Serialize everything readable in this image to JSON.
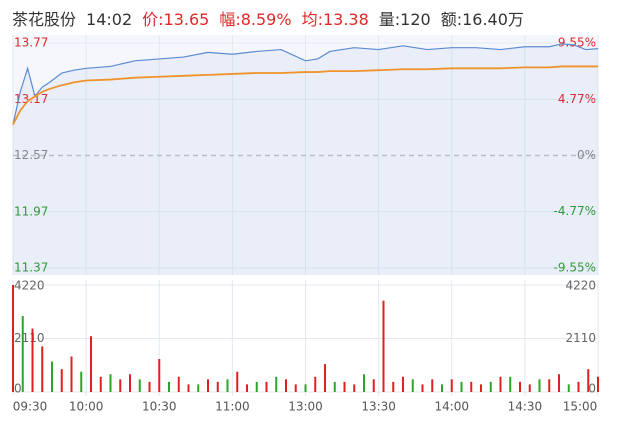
{
  "header": {
    "name": "茶花股份",
    "time": "14:02",
    "price": "价:13.65",
    "change": "幅:8.59%",
    "avg": "均:13.38",
    "volume": "量:120",
    "amount": "额:16.40万"
  },
  "chart_data": [
    {
      "type": "line",
      "xlim": [
        0,
        240
      ],
      "x": [
        0,
        3,
        6,
        9,
        12,
        15,
        20,
        25,
        30,
        40,
        50,
        60,
        70,
        80,
        90,
        100,
        110,
        120,
        125,
        130,
        140,
        150,
        160,
        170,
        180,
        190,
        200,
        210,
        220,
        225,
        230,
        235,
        240
      ],
      "series": [
        {
          "color": "#5b8bd0",
          "values": [
            12.9,
            13.25,
            13.5,
            13.2,
            13.3,
            13.35,
            13.45,
            13.48,
            13.5,
            13.52,
            13.58,
            13.6,
            13.62,
            13.67,
            13.65,
            13.68,
            13.7,
            13.58,
            13.6,
            13.68,
            13.72,
            13.7,
            13.74,
            13.7,
            13.72,
            13.72,
            13.7,
            13.73,
            13.73,
            13.76,
            13.75,
            13.7,
            13.71
          ]
        },
        {
          "color": "#f0932b",
          "values": [
            12.9,
            13.05,
            13.15,
            13.2,
            13.25,
            13.28,
            13.32,
            13.35,
            13.37,
            13.38,
            13.4,
            13.41,
            13.42,
            13.43,
            13.44,
            13.45,
            13.45,
            13.46,
            13.46,
            13.47,
            13.47,
            13.48,
            13.49,
            13.49,
            13.5,
            13.5,
            13.5,
            13.51,
            13.51,
            13.52,
            13.52,
            13.52,
            13.52
          ]
        }
      ],
      "ylim": [
        11.37,
        13.77
      ],
      "yticks": [
        13.77,
        13.17,
        12.57,
        11.97,
        11.37
      ],
      "y2lim": [
        -9.55,
        9.55
      ],
      "y2ticks": [
        {
          "value": 9.55,
          "label": "9.55%"
        },
        {
          "value": 4.77,
          "label": "4.77%"
        },
        {
          "value": 0,
          "label": "0%"
        },
        {
          "value": -4.77,
          "label": "-4.77%"
        },
        {
          "value": -9.55,
          "label": "-9.55%"
        }
      ]
    },
    {
      "type": "bar",
      "xlim": [
        0,
        240
      ],
      "x": [
        0,
        4,
        8,
        12,
        16,
        20,
        24,
        28,
        32,
        36,
        40,
        44,
        48,
        52,
        56,
        60,
        64,
        68,
        72,
        76,
        80,
        84,
        88,
        92,
        96,
        100,
        104,
        108,
        112,
        116,
        120,
        124,
        128,
        132,
        136,
        140,
        144,
        148,
        152,
        156,
        160,
        164,
        168,
        172,
        176,
        180,
        184,
        188,
        192,
        196,
        200,
        204,
        208,
        212,
        216,
        220,
        224,
        228,
        232,
        236,
        240
      ],
      "series": [
        {
          "color": "#e02020",
          "values": [
            4220,
            null,
            2500,
            1800,
            null,
            900,
            1400,
            null,
            2200,
            600,
            null,
            500,
            700,
            null,
            400,
            1300,
            null,
            600,
            300,
            null,
            500,
            400,
            null,
            800,
            300,
            null,
            400,
            null,
            500,
            300,
            null,
            600,
            1100,
            null,
            400,
            300,
            null,
            500,
            3600,
            400,
            600,
            null,
            300,
            500,
            null,
            500,
            null,
            400,
            300,
            null,
            600,
            null,
            400,
            300,
            null,
            500,
            700,
            null,
            400,
            900,
            600
          ]
        },
        {
          "color": "#2aa52a",
          "values": [
            null,
            3000,
            null,
            null,
            1200,
            null,
            null,
            800,
            null,
            null,
            700,
            null,
            null,
            500,
            null,
            null,
            400,
            null,
            null,
            300,
            null,
            null,
            500,
            null,
            null,
            400,
            null,
            600,
            null,
            null,
            300,
            null,
            null,
            400,
            null,
            null,
            700,
            null,
            null,
            null,
            null,
            500,
            null,
            null,
            300,
            null,
            400,
            null,
            null,
            400,
            null,
            600,
            null,
            null,
            500,
            null,
            null,
            300,
            null,
            null,
            null
          ]
        }
      ],
      "ylim": [
        0,
        4220
      ],
      "yticks": [
        4220,
        2110,
        0
      ],
      "xticks": [
        {
          "value": 0,
          "label": "09:30"
        },
        {
          "value": 30,
          "label": "10:00"
        },
        {
          "value": 60,
          "label": "10:30"
        },
        {
          "value": 90,
          "label": "11:00"
        },
        {
          "value": 120,
          "label": "13:00"
        },
        {
          "value": 150,
          "label": "13:30"
        },
        {
          "value": 180,
          "label": "14:00"
        },
        {
          "value": 210,
          "label": "14:30"
        },
        {
          "value": 240,
          "label": "15:00"
        }
      ]
    }
  ]
}
